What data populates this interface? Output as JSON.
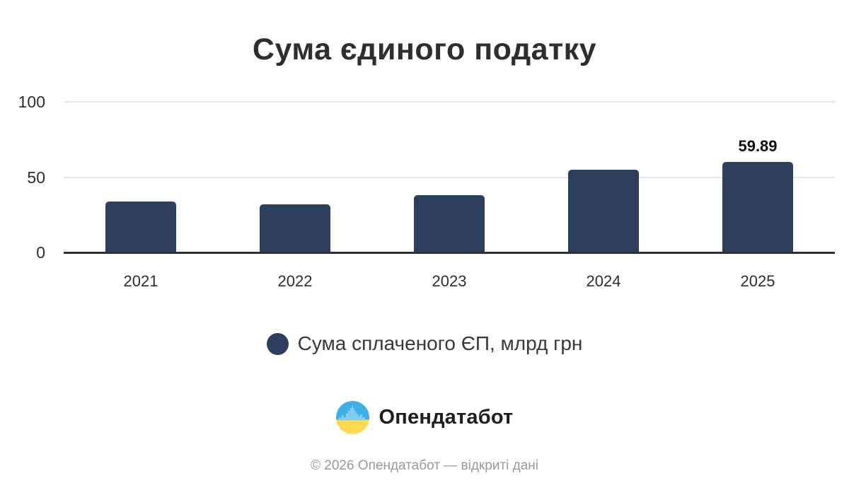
{
  "chart_data": {
    "type": "bar",
    "title": "Сума єдиного податку",
    "categories": [
      "2021",
      "2022",
      "2023",
      "2024",
      "2025"
    ],
    "series": [
      {
        "name": "Сума сплаченого ЄП, млрд грн",
        "values": [
          34,
          32,
          38,
          55,
          59.89
        ]
      }
    ],
    "value_labels": [
      "",
      "",
      "",
      "",
      "59.89"
    ],
    "xlabel": "",
    "ylabel": "",
    "ylim": [
      0,
      100
    ],
    "yticks": [
      0,
      50,
      100
    ],
    "grid": "horizontal",
    "legend_position": "bottom",
    "bar_color": "#2d3e5e"
  },
  "legend": {
    "label": "Сума сплаченого ЄП, млрд грн",
    "swatch_color": "#2d3e5e"
  },
  "branding": {
    "logo_text": "Опендатабот",
    "logo_icon": "opendatabot-flag-skyline-icon",
    "colors": {
      "flag_blue": "#3fafe6",
      "flag_yellow": "#ffd951",
      "skyline_blue": "#83ccf1"
    }
  },
  "footer": {
    "text": "© 2026 Опендатабот — відкриті дані"
  }
}
